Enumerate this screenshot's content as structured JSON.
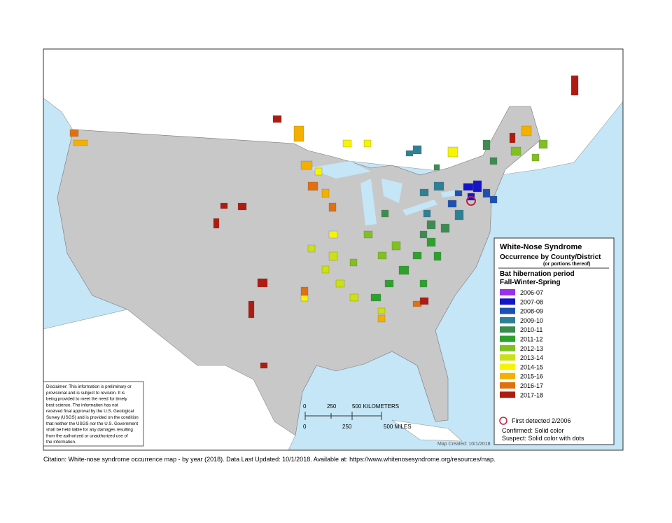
{
  "legend": {
    "title": "White-Nose Syndrome",
    "subtitle": "Occurrence by County/District",
    "note": "(or portions thereof)",
    "period_title": "Bat hibernation period",
    "period_subtitle": "Fall-Winter-Spring",
    "items": [
      {
        "label": "2006-07",
        "color": "#9b30e8"
      },
      {
        "label": "2007-08",
        "color": "#1414c8"
      },
      {
        "label": "2008-09",
        "color": "#1e50b4"
      },
      {
        "label": "2009-10",
        "color": "#2e8094"
      },
      {
        "label": "2010-11",
        "color": "#3c8c50"
      },
      {
        "label": "2011-12",
        "color": "#2ea02e"
      },
      {
        "label": "2012-13",
        "color": "#80c020"
      },
      {
        "label": "2013-14",
        "color": "#cce014"
      },
      {
        "label": "2014-15",
        "color": "#f6f400"
      },
      {
        "label": "2015-16",
        "color": "#f4b000"
      },
      {
        "label": "2016-17",
        "color": "#e07010"
      },
      {
        "label": "2017-18",
        "color": "#b01a10"
      }
    ],
    "first_detected": "First detected 2/2006",
    "confirmed": "Confirmed:  Solid color",
    "suspect": "Suspect:  Solid color with dots"
  },
  "disclaimer": [
    "Disclaimer: This information is preliminary or",
    "provisional and is subject to revision. It is",
    "being provided to meet the need for timely",
    "best science. The information has not",
    "received final approval by the U.S. Geological",
    "Survey (USGS) and is provided on the condition",
    "that neither the USGS nor the U.S. Government",
    "shall be held liable for any damages resulting",
    "from the authorized or unauthorized use of",
    "the information."
  ],
  "scale": {
    "km": [
      "0",
      "250",
      "500 KILOMETERS"
    ],
    "mi": [
      "0",
      "250",
      "500 MILES"
    ]
  },
  "map_created": "Map Created:  10/1/2018",
  "citation": "Citation: White-nose syndrome occurrence map - by year (2018).  Data Last Updated: 10/1/2018. Available at: https://www.whitenosesyndrome.org/resources/map."
}
